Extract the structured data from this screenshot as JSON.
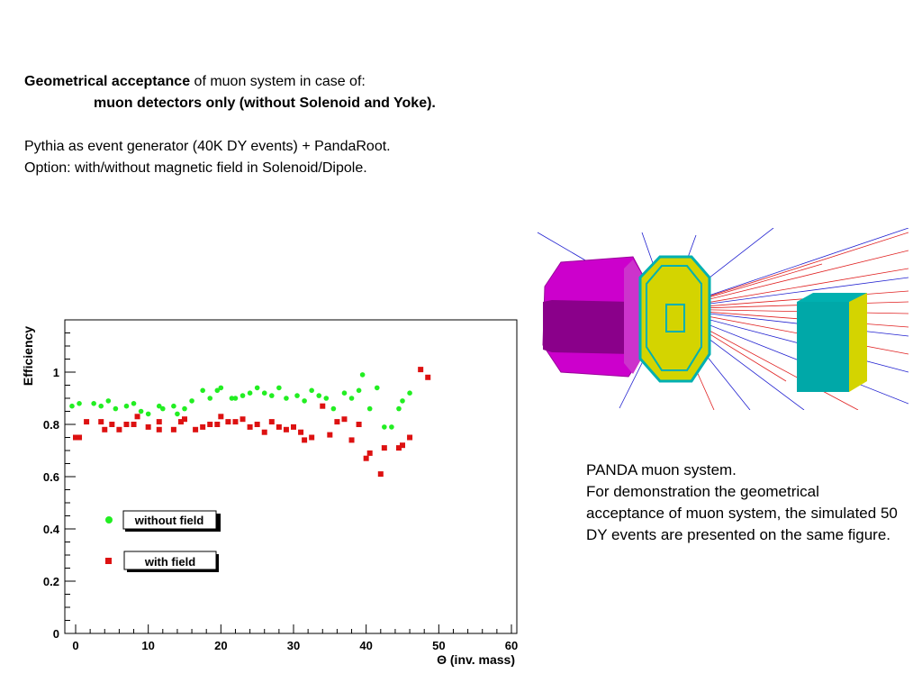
{
  "intro": {
    "line1_bold": "Geometrical acceptance",
    "line1_rest": " of muon system in case of:",
    "line2": "muon detectors only (without Solenoid and Yoke).",
    "line3": "Pythia as event generator (40K DY events) + PandaRoot.",
    "line4": "Option: with/without magnetic field in Solenoid/Dipole."
  },
  "caption": {
    "line1": "PANDA muon system.",
    "line2": "For demonstration the geometrical acceptance of muon system, the simulated 50 DY events are presented on the same figure."
  },
  "colors": {
    "without_field": "#22ee22",
    "with_field": "#dd1111"
  },
  "chart_data": {
    "type": "scatter",
    "xlabel": "Θ (inv. mass)",
    "ylabel": "Efficiency",
    "xlim": [
      0,
      60
    ],
    "ylim": [
      0,
      1.2
    ],
    "x_ticks": [
      "0",
      "10",
      "20",
      "30",
      "40",
      "50",
      "60"
    ],
    "y_ticks": [
      "0",
      "0.2",
      "0.4",
      "0.6",
      "0.8",
      "1"
    ],
    "legend": [
      "without field",
      "with field"
    ],
    "series": [
      {
        "name": "without field",
        "color": "#22ee22",
        "marker": "circle",
        "points": [
          [
            -0.5,
            0.87
          ],
          [
            0.5,
            0.88
          ],
          [
            2.5,
            0.88
          ],
          [
            3.5,
            0.87
          ],
          [
            4.5,
            0.89
          ],
          [
            5.5,
            0.86
          ],
          [
            7,
            0.87
          ],
          [
            8,
            0.88
          ],
          [
            9,
            0.85
          ],
          [
            10,
            0.84
          ],
          [
            11.5,
            0.87
          ],
          [
            12,
            0.86
          ],
          [
            13.5,
            0.87
          ],
          [
            14,
            0.84
          ],
          [
            15,
            0.86
          ],
          [
            16,
            0.89
          ],
          [
            17.5,
            0.93
          ],
          [
            18.5,
            0.9
          ],
          [
            19.5,
            0.93
          ],
          [
            20,
            0.94
          ],
          [
            21.5,
            0.9
          ],
          [
            22,
            0.9
          ],
          [
            23,
            0.91
          ],
          [
            24,
            0.92
          ],
          [
            25,
            0.94
          ],
          [
            26,
            0.92
          ],
          [
            27,
            0.91
          ],
          [
            28,
            0.94
          ],
          [
            29,
            0.9
          ],
          [
            30.5,
            0.91
          ],
          [
            31.5,
            0.89
          ],
          [
            32.5,
            0.93
          ],
          [
            33.5,
            0.91
          ],
          [
            34.5,
            0.9
          ],
          [
            35.5,
            0.86
          ],
          [
            37,
            0.92
          ],
          [
            38,
            0.9
          ],
          [
            39,
            0.93
          ],
          [
            39.5,
            0.99
          ],
          [
            40.5,
            0.86
          ],
          [
            41.5,
            0.94
          ],
          [
            42.5,
            0.79
          ],
          [
            43.5,
            0.79
          ],
          [
            44.5,
            0.86
          ],
          [
            45,
            0.89
          ],
          [
            46,
            0.92
          ]
        ]
      },
      {
        "name": "with field",
        "color": "#dd1111",
        "marker": "square",
        "points": [
          [
            0,
            0.75
          ],
          [
            0.5,
            0.75
          ],
          [
            1.5,
            0.81
          ],
          [
            3.5,
            0.81
          ],
          [
            4,
            0.78
          ],
          [
            5,
            0.8
          ],
          [
            6,
            0.78
          ],
          [
            7,
            0.8
          ],
          [
            8,
            0.8
          ],
          [
            8.5,
            0.83
          ],
          [
            10,
            0.79
          ],
          [
            11.5,
            0.81
          ],
          [
            11.5,
            0.78
          ],
          [
            13.5,
            0.78
          ],
          [
            14.5,
            0.81
          ],
          [
            15,
            0.82
          ],
          [
            16.5,
            0.78
          ],
          [
            17.5,
            0.79
          ],
          [
            18.5,
            0.8
          ],
          [
            19.5,
            0.8
          ],
          [
            20,
            0.83
          ],
          [
            21,
            0.81
          ],
          [
            22,
            0.81
          ],
          [
            23,
            0.82
          ],
          [
            24,
            0.79
          ],
          [
            25,
            0.8
          ],
          [
            26,
            0.77
          ],
          [
            27,
            0.81
          ],
          [
            28,
            0.79
          ],
          [
            29,
            0.78
          ],
          [
            30,
            0.79
          ],
          [
            31,
            0.77
          ],
          [
            31.5,
            0.74
          ],
          [
            32.5,
            0.75
          ],
          [
            34,
            0.87
          ],
          [
            35,
            0.76
          ],
          [
            36,
            0.81
          ],
          [
            37,
            0.82
          ],
          [
            38,
            0.74
          ],
          [
            39,
            0.8
          ],
          [
            40,
            0.67
          ],
          [
            40.5,
            0.69
          ],
          [
            42,
            0.61
          ],
          [
            42.5,
            0.71
          ],
          [
            44.5,
            0.71
          ],
          [
            45,
            0.72
          ],
          [
            46,
            0.75
          ],
          [
            47.5,
            1.01
          ],
          [
            48.5,
            0.98
          ]
        ]
      }
    ]
  }
}
